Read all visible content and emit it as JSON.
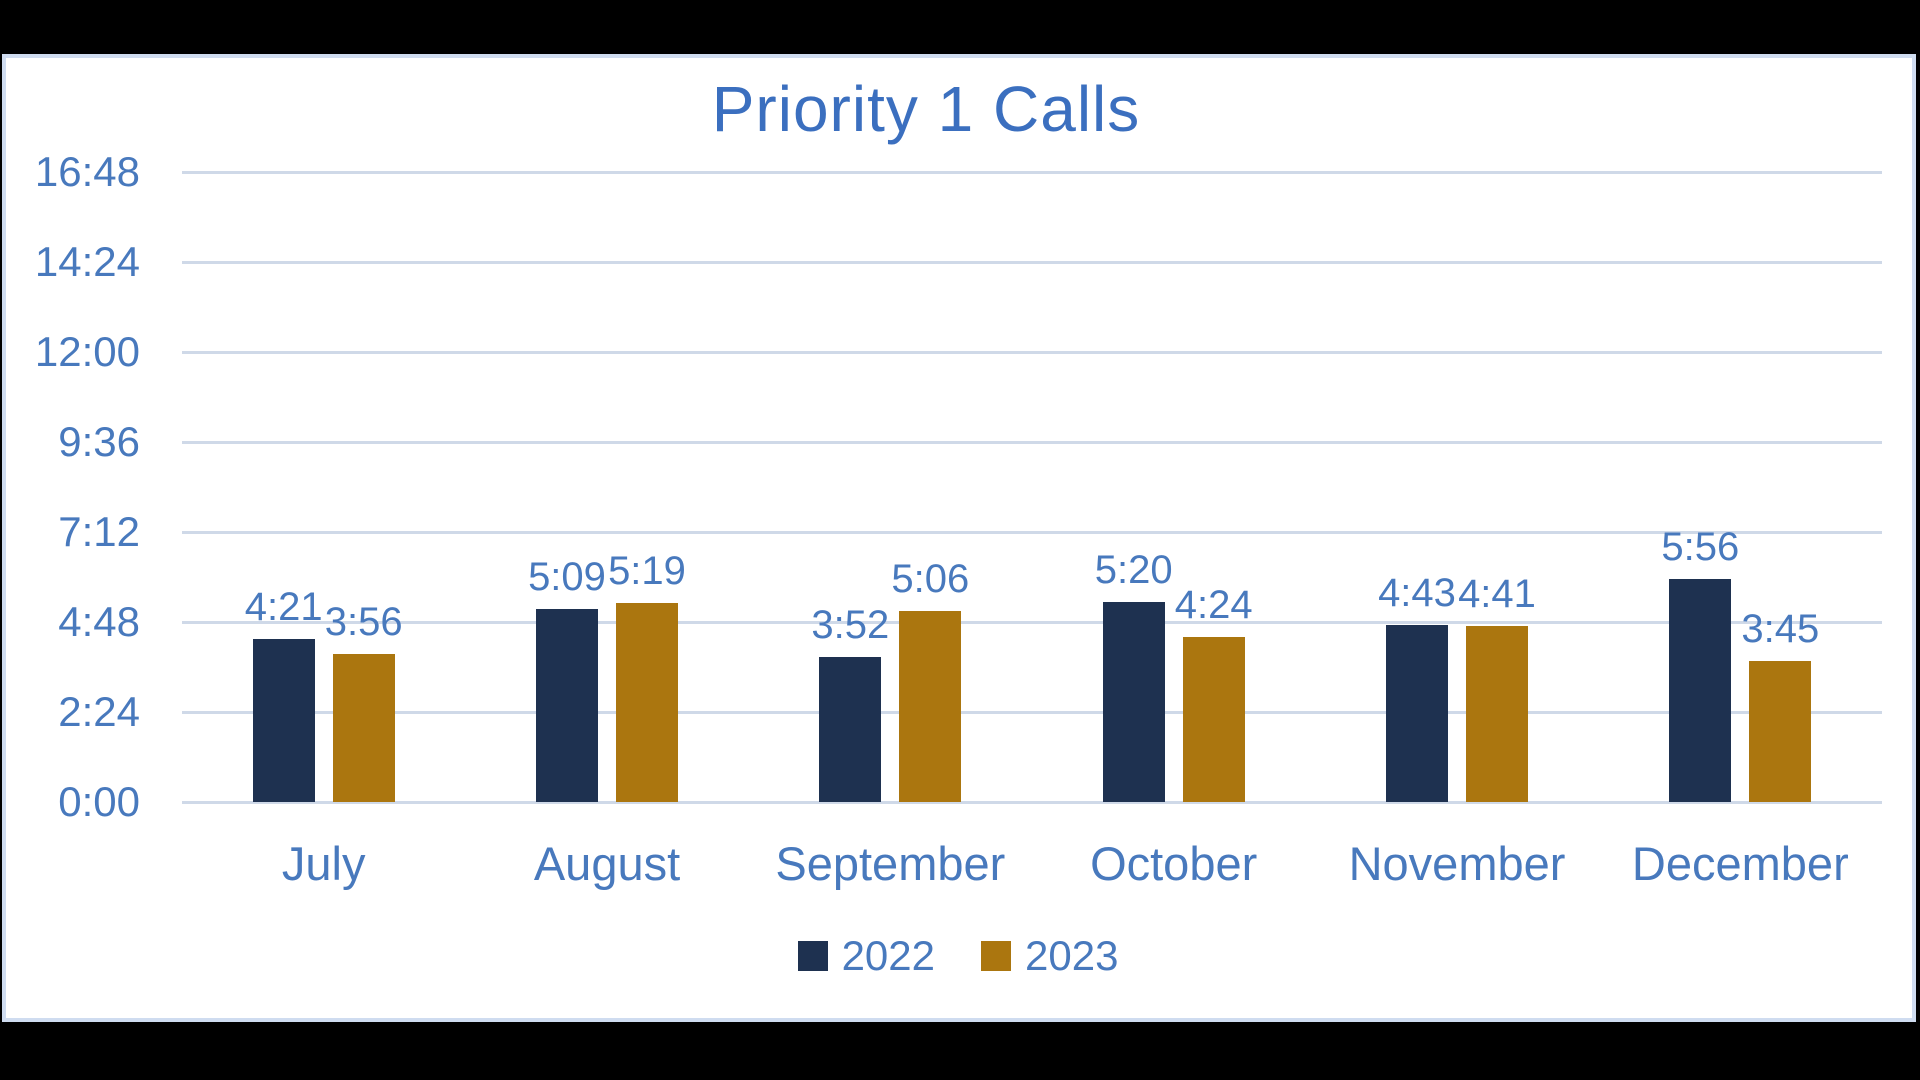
{
  "window": {
    "background": "#000000",
    "panel_background": "#ffffff",
    "panel_border_color": "#cfdcf0"
  },
  "chart_data": {
    "type": "bar",
    "title": "Priority 1 Calls",
    "title_color": "#3b6fbf",
    "text_color": "#4879bd",
    "gridline_color": "#cfd9e8",
    "grid": true,
    "legend_position": "bottom",
    "value_format": "h:mm",
    "categories": [
      "July",
      "August",
      "September",
      "October",
      "November",
      "December"
    ],
    "series": [
      {
        "name": "2022",
        "color": "#1e3150",
        "values": [
          "4:21",
          "5:09",
          "3:52",
          "5:20",
          "4:43",
          "5:56"
        ]
      },
      {
        "name": "2023",
        "color": "#ab760f",
        "values": [
          "3:56",
          "5:19",
          "5:06",
          "4:24",
          "4:41",
          "3:45"
        ]
      }
    ],
    "y_ticks": [
      "0:00",
      "2:24",
      "4:48",
      "7:12",
      "9:36",
      "12:00",
      "14:24",
      "16:48"
    ],
    "ylim_minutes": [
      0,
      1008
    ],
    "y_tick_step_minutes": 144
  }
}
